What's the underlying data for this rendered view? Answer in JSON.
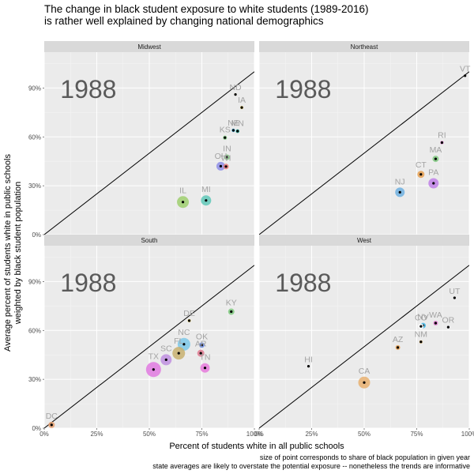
{
  "title_line1": "The change in black student exposure to white students (1989-2016)",
  "title_line2": "is rather well explained by changing national demographics",
  "caption_line1": "size of point corresponds to share of black population in given year",
  "caption_line2": "state averages are likely to overstate the potential exposure -- nonetheless the trends are informative",
  "chart_data": {
    "type": "scatter",
    "xlabel": "Percent of students white in all public schools",
    "ylabel_line1": "Average percent of students white in public schools",
    "ylabel_line2": "weighted by black student population",
    "xlim": [
      0,
      1
    ],
    "ylim": [
      0,
      1.12
    ],
    "x_ticks": [
      0,
      0.25,
      0.5,
      0.75,
      1.0
    ],
    "x_tick_labels": [
      "0%",
      "25%",
      "50%",
      "75%",
      "100%"
    ],
    "y_ticks": [
      0,
      0.3,
      0.6,
      0.9
    ],
    "y_tick_labels": [
      "0%",
      "30%",
      "60%",
      "90%"
    ],
    "reference_line": "y = x",
    "grid": true,
    "panels": [
      {
        "name": "Midwest",
        "year": "1988",
        "points": [
          {
            "label": "ND",
            "x": 0.91,
            "y": 0.86,
            "size": 1.5,
            "color": "#e6d83a"
          },
          {
            "label": "IA",
            "x": 0.94,
            "y": 0.78,
            "size": 2.0,
            "color": "#e6c84a"
          },
          {
            "label": "NE",
            "x": 0.9,
            "y": 0.64,
            "size": 2.2,
            "color": "#3db5e6"
          },
          {
            "label": "MN",
            "x": 0.92,
            "y": 0.635,
            "size": 2.4,
            "color": "#2bb3a0"
          },
          {
            "label": "KS",
            "x": 0.86,
            "y": 0.595,
            "size": 2.6,
            "color": "#7fc97f"
          },
          {
            "label": "IN",
            "x": 0.87,
            "y": 0.475,
            "size": 3.5,
            "color": "#7fc97f"
          },
          {
            "label": "OH",
            "x": 0.84,
            "y": 0.42,
            "size": 5.5,
            "color": "#8e8ee8"
          },
          {
            "label": "WI",
            "x": 0.865,
            "y": 0.418,
            "size": 3.5,
            "color": "#e87878"
          },
          {
            "label": "IL",
            "x": 0.66,
            "y": 0.2,
            "size": 7.5,
            "color": "#9fcf6f"
          },
          {
            "label": "MI",
            "x": 0.77,
            "y": 0.21,
            "size": 6.5,
            "color": "#5fc8b8"
          }
        ]
      },
      {
        "name": "Northeast",
        "year": "1988",
        "points": [
          {
            "label": "VT",
            "x": 0.98,
            "y": 0.975,
            "size": 1.2,
            "color": "#9b8bd8"
          },
          {
            "label": "RI",
            "x": 0.87,
            "y": 0.565,
            "size": 2.2,
            "color": "#e07ad0"
          },
          {
            "label": "MA",
            "x": 0.84,
            "y": 0.465,
            "size": 4.0,
            "color": "#7fc97f"
          },
          {
            "label": "CT",
            "x": 0.77,
            "y": 0.37,
            "size": 4.5,
            "color": "#e8a050"
          },
          {
            "label": "PA",
            "x": 0.83,
            "y": 0.315,
            "size": 6.5,
            "color": "#c080e8"
          },
          {
            "label": "NJ",
            "x": 0.67,
            "y": 0.26,
            "size": 6.0,
            "color": "#6fb0e0"
          }
        ]
      },
      {
        "name": "South",
        "year": "1988",
        "points": [
          {
            "label": "KY",
            "x": 0.89,
            "y": 0.715,
            "size": 4.0,
            "color": "#7fc97f"
          },
          {
            "label": "DE",
            "x": 0.69,
            "y": 0.66,
            "size": 2.0,
            "color": "#e8c84a"
          },
          {
            "label": "NC",
            "x": 0.665,
            "y": 0.515,
            "size": 8.0,
            "color": "#7cc8e8"
          },
          {
            "label": "OK",
            "x": 0.75,
            "y": 0.51,
            "size": 3.5,
            "color": "#6f8fe8"
          },
          {
            "label": "AR",
            "x": 0.745,
            "y": 0.46,
            "size": 4.5,
            "color": "#e07a90"
          },
          {
            "label": "FL",
            "x": 0.64,
            "y": 0.46,
            "size": 8.0,
            "color": "#c8b070"
          },
          {
            "label": "TN",
            "x": 0.765,
            "y": 0.37,
            "size": 6.0,
            "color": "#e67adc"
          },
          {
            "label": "SC",
            "x": 0.58,
            "y": 0.42,
            "size": 7.0,
            "color": "#c08fe0"
          },
          {
            "label": "TX",
            "x": 0.52,
            "y": 0.36,
            "size": 9.5,
            "color": "#e07ae0"
          },
          {
            "label": "DC",
            "x": 0.035,
            "y": 0.02,
            "size": 4.0,
            "color": "#e8a070"
          }
        ]
      },
      {
        "name": "West",
        "year": "1988",
        "points": [
          {
            "label": "UT",
            "x": 0.93,
            "y": 0.8,
            "size": 1.2,
            "color": "#b87ae0"
          },
          {
            "label": "NV",
            "x": 0.78,
            "y": 0.63,
            "size": 3.5,
            "color": "#3db5e6"
          },
          {
            "label": "WA",
            "x": 0.84,
            "y": 0.645,
            "size": 3.0,
            "color": "#e07ad0"
          },
          {
            "label": "OR",
            "x": 0.9,
            "y": 0.62,
            "size": 1.5,
            "color": "#6f8fe8"
          },
          {
            "label": "CO",
            "x": 0.77,
            "y": 0.625,
            "size": 3.5,
            "color": "#ffffff"
          },
          {
            "label": "AZ",
            "x": 0.66,
            "y": 0.495,
            "size": 3.0,
            "color": "#e8a050"
          },
          {
            "label": "NM",
            "x": 0.77,
            "y": 0.53,
            "size": 2.0,
            "color": "#e8b050"
          },
          {
            "label": "HI",
            "x": 0.235,
            "y": 0.38,
            "size": 1.2,
            "color": "#e6d83a"
          },
          {
            "label": "CA",
            "x": 0.5,
            "y": 0.28,
            "size": 7.5,
            "color": "#e8b070"
          }
        ]
      }
    ]
  }
}
